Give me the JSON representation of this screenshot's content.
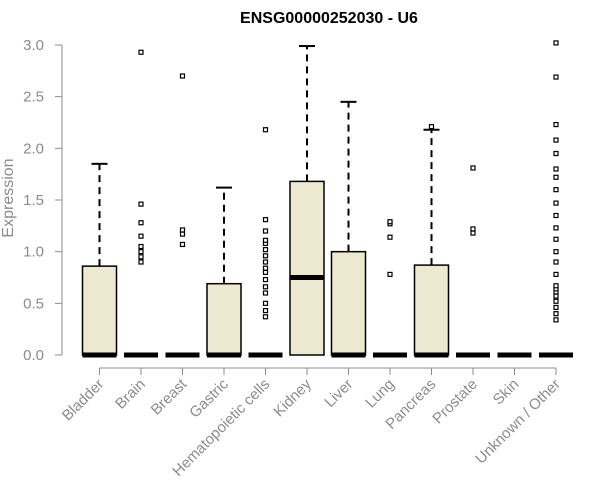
{
  "colors": {
    "box_fill": "#ede8d0",
    "box_stroke": "#000000",
    "axis": "#8c8c8c",
    "text_muted": "#8c8c8c",
    "title": "#000000"
  },
  "chart_data": {
    "type": "boxplot",
    "title": "ENSG00000252030 - U6",
    "xlabel": "",
    "ylabel": "Expression",
    "ylim": [
      0,
      3.0
    ],
    "yticks": [
      0.0,
      0.5,
      1.0,
      1.5,
      2.0,
      2.5,
      3.0
    ],
    "ytick_labels": [
      "0.0",
      "0.5",
      "1.0",
      "1.5",
      "2.0",
      "2.5",
      "3.0"
    ],
    "grid": false,
    "legend": "none",
    "categories": [
      "Bladder",
      "Brain",
      "Breast",
      "Gastric",
      "Hematopoietic cells",
      "Kidney",
      "Liver",
      "Lung",
      "Pancreas",
      "Prostate",
      "Skin",
      "Unknown / Other"
    ],
    "boxes": [
      {
        "name": "Bladder",
        "q1": 0.0,
        "median": 0.0,
        "q3": 0.86,
        "whisker_low": 0.0,
        "whisker_high": 1.85,
        "outliers": []
      },
      {
        "name": "Brain",
        "q1": 0.0,
        "median": 0.0,
        "q3": 0.0,
        "whisker_low": 0.0,
        "whisker_high": 0.0,
        "outliers": [
          0.9,
          0.95,
          1.0,
          1.05,
          1.15,
          1.28,
          1.46,
          2.93
        ]
      },
      {
        "name": "Breast",
        "q1": 0.0,
        "median": 0.0,
        "q3": 0.0,
        "whisker_low": 0.0,
        "whisker_high": 0.0,
        "outliers": [
          1.07,
          1.17,
          1.21,
          2.7
        ]
      },
      {
        "name": "Gastric",
        "q1": 0.0,
        "median": 0.0,
        "q3": 0.69,
        "whisker_low": 0.0,
        "whisker_high": 1.62,
        "outliers": []
      },
      {
        "name": "Hematopoietic cells",
        "q1": 0.0,
        "median": 0.0,
        "q3": 0.0,
        "whisker_low": 0.0,
        "whisker_high": 0.0,
        "outliers": [
          0.37,
          0.43,
          0.5,
          0.6,
          0.66,
          0.73,
          0.8,
          0.84,
          0.9,
          0.96,
          1.02,
          1.08,
          1.11,
          1.2,
          1.31,
          2.18
        ]
      },
      {
        "name": "Kidney",
        "q1": 0.0,
        "median": 0.75,
        "q3": 1.68,
        "whisker_low": 0.0,
        "whisker_high": 2.99,
        "outliers": []
      },
      {
        "name": "Liver",
        "q1": 0.0,
        "median": 0.0,
        "q3": 1.0,
        "whisker_low": 0.0,
        "whisker_high": 2.45,
        "outliers": []
      },
      {
        "name": "Lung",
        "q1": 0.0,
        "median": 0.0,
        "q3": 0.0,
        "whisker_low": 0.0,
        "whisker_high": 0.0,
        "outliers": [
          0.78,
          1.14,
          1.27,
          1.29
        ]
      },
      {
        "name": "Pancreas",
        "q1": 0.0,
        "median": 0.0,
        "q3": 0.87,
        "whisker_low": 0.0,
        "whisker_high": 2.18,
        "outliers": [
          2.21
        ]
      },
      {
        "name": "Prostate",
        "q1": 0.0,
        "median": 0.0,
        "q3": 0.0,
        "whisker_low": 0.0,
        "whisker_high": 0.0,
        "outliers": [
          1.18,
          1.22,
          1.81
        ]
      },
      {
        "name": "Skin",
        "q1": 0.0,
        "median": 0.0,
        "q3": 0.0,
        "whisker_low": 0.0,
        "whisker_high": 0.0,
        "outliers": []
      },
      {
        "name": "Unknown / Other",
        "q1": 0.0,
        "median": 0.0,
        "q3": 0.0,
        "whisker_low": 0.0,
        "whisker_high": 0.0,
        "outliers": [
          0.34,
          0.4,
          0.46,
          0.52,
          0.57,
          0.61,
          0.64,
          0.67,
          0.78,
          0.9,
          1.0,
          1.12,
          1.23,
          1.35,
          1.47,
          1.6,
          1.72,
          1.8,
          1.95,
          2.08,
          2.23,
          2.69,
          3.02
        ]
      }
    ]
  }
}
